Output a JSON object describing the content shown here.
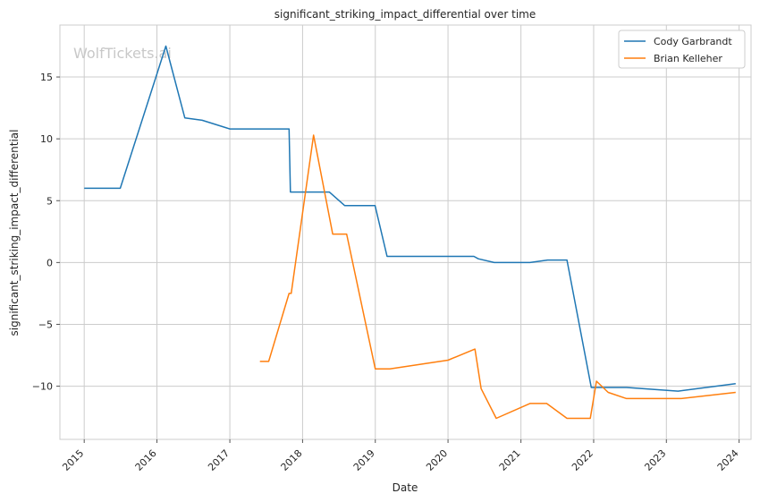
{
  "watermark": "WolfTickets.ai",
  "chart_data": {
    "type": "line",
    "title": "significant_striking_impact_differential over time",
    "xlabel": "Date",
    "ylabel": "significant_striking_impact_differential",
    "xlim": [
      "2014-09-01",
      "2024-03-01"
    ],
    "ylim": [
      -14.3,
      19.2
    ],
    "x_ticks": [
      "2015",
      "2016",
      "2017",
      "2018",
      "2019",
      "2020",
      "2021",
      "2022",
      "2023",
      "2024"
    ],
    "y_ticks": [
      -10,
      -5,
      0,
      5,
      10,
      15
    ],
    "y_tick_labels": [
      "−10",
      "−5",
      "0",
      "5",
      "10",
      "15"
    ],
    "grid": true,
    "legend_position": "top-right",
    "colors": {
      "Cody Garbrandt": "#1f77b4",
      "Brian Kelleher": "#ff7f0e"
    },
    "series": [
      {
        "name": "Cody Garbrandt",
        "points": [
          [
            "2015-01-01",
            6.0
          ],
          [
            "2015-07-01",
            6.0
          ],
          [
            "2016-02-15",
            17.5
          ],
          [
            "2016-05-20",
            11.7
          ],
          [
            "2016-08-15",
            11.5
          ],
          [
            "2017-01-01",
            10.8
          ],
          [
            "2017-10-25",
            10.8
          ],
          [
            "2017-11-01",
            5.7
          ],
          [
            "2018-05-15",
            5.7
          ],
          [
            "2018-08-01",
            4.6
          ],
          [
            "2018-12-31",
            4.6
          ],
          [
            "2019-03-01",
            0.5
          ],
          [
            "2020-05-10",
            0.5
          ],
          [
            "2020-06-01",
            0.3
          ],
          [
            "2020-08-20",
            0.0
          ],
          [
            "2021-02-15",
            0.0
          ],
          [
            "2021-05-15",
            0.2
          ],
          [
            "2021-08-20",
            0.2
          ],
          [
            "2021-12-20",
            -10.1
          ],
          [
            "2022-06-15",
            -10.1
          ],
          [
            "2023-03-01",
            -10.4
          ],
          [
            "2023-12-15",
            -9.8
          ]
        ]
      },
      {
        "name": "Brian Kelleher",
        "points": [
          [
            "2017-06-01",
            -8.0
          ],
          [
            "2017-07-15",
            -8.0
          ],
          [
            "2017-10-25",
            -2.5
          ],
          [
            "2017-11-05",
            -2.5
          ],
          [
            "2018-02-25",
            10.3
          ],
          [
            "2018-06-01",
            2.3
          ],
          [
            "2018-08-10",
            2.3
          ],
          [
            "2019-01-01",
            -8.6
          ],
          [
            "2019-03-15",
            -8.6
          ],
          [
            "2020-01-01",
            -7.9
          ],
          [
            "2020-05-15",
            -7.0
          ],
          [
            "2020-06-15",
            -10.2
          ],
          [
            "2020-08-30",
            -12.6
          ],
          [
            "2021-02-15",
            -11.4
          ],
          [
            "2021-05-10",
            -11.4
          ],
          [
            "2021-08-20",
            -12.6
          ],
          [
            "2021-12-15",
            -12.6
          ],
          [
            "2022-01-15",
            -9.6
          ],
          [
            "2022-03-15",
            -10.5
          ],
          [
            "2022-06-15",
            -11.0
          ],
          [
            "2023-03-15",
            -11.0
          ],
          [
            "2023-12-15",
            -10.5
          ]
        ]
      }
    ]
  }
}
